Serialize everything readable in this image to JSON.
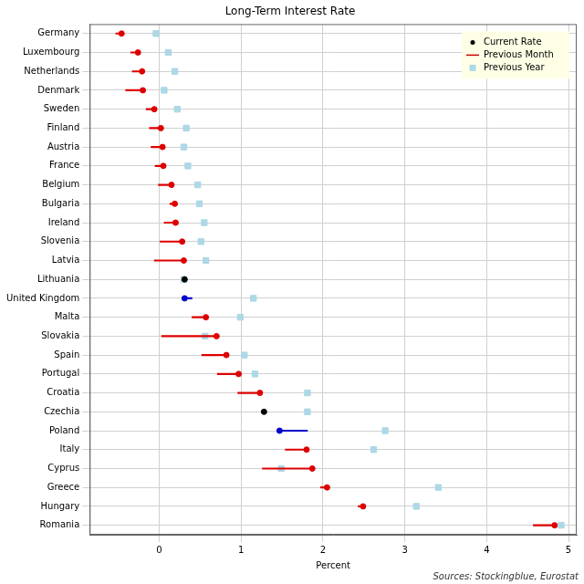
{
  "chart_data": {
    "type": "dumbbell",
    "title": "Long-Term Interest Rate",
    "x_label": "Percent",
    "source": "Sources: Stockingblue, Eurostat",
    "orientation": "horizontal",
    "categories": [
      "Germany",
      "Luxembourg",
      "Netherlands",
      "Denmark",
      "Sweden",
      "Finland",
      "Austria",
      "France",
      "Belgium",
      "Bulgaria",
      "Ireland",
      "Slovenia",
      "Latvia",
      "Lithuania",
      "United Kingdom",
      "Malta",
      "Slovakia",
      "Spain",
      "Portugal",
      "Croatia",
      "Czechia",
      "Poland",
      "Italy",
      "Cyprus",
      "Greece",
      "Hungary",
      "Romania"
    ],
    "series": [
      {
        "name": "Current Rate",
        "color": "#000000",
        "marker": "circle",
        "values": [
          -0.46,
          -0.26,
          -0.21,
          -0.2,
          -0.06,
          0.02,
          0.04,
          0.05,
          0.15,
          0.19,
          0.2,
          0.28,
          0.3,
          0.31,
          0.31,
          0.57,
          0.7,
          0.82,
          0.97,
          1.23,
          1.28,
          1.47,
          1.8,
          1.87,
          2.05,
          2.49,
          4.83
        ],
        "colors": [
          "#dd0000",
          "#dd0000",
          "#dd0000",
          "#dd0000",
          "#dd0000",
          "#dd0000",
          "#dd0000",
          "#dd0000",
          "#dd0000",
          "#dd0000",
          "#dd0000",
          "#dd0000",
          "#dd0000",
          "#000000",
          "#0000cc",
          "#dd0000",
          "#dd0000",
          "#dd0000",
          "#dd0000",
          "#dd0000",
          "#000000",
          "#0000cc",
          "#dd0000",
          "#dd0000",
          "#dd0000",
          "#dd0000",
          "#dd0000"
        ]
      },
      {
        "name": "Previous Month",
        "color": "#cc0000",
        "line_style": "solid",
        "values": [
          -0.53,
          -0.35,
          -0.33,
          -0.41,
          -0.16,
          -0.12,
          -0.1,
          -0.05,
          -0.01,
          0.13,
          0.06,
          0.01,
          -0.06,
          0.31,
          0.4,
          0.4,
          0.03,
          0.52,
          0.71,
          0.96,
          1.28,
          1.81,
          1.54,
          1.26,
          1.97,
          2.43,
          4.57
        ],
        "colors": [
          "#dd0000",
          "#dd0000",
          "#dd0000",
          "#dd0000",
          "#dd0000",
          "#dd0000",
          "#dd0000",
          "#dd0000",
          "#dd0000",
          "#dd0000",
          "#dd0000",
          "#dd0000",
          "#dd0000",
          "#000000",
          "#0000cc",
          "#dd0000",
          "#dd0000",
          "#dd0000",
          "#dd0000",
          "#dd0000",
          "#000000",
          "#0000cc",
          "#dd0000",
          "#dd0000",
          "#dd0000",
          "#dd0000",
          "#dd0000"
        ]
      },
      {
        "name": "Previous Year",
        "color": "#add8e6",
        "marker": "square",
        "values": [
          -0.04,
          0.11,
          0.19,
          0.06,
          0.22,
          0.33,
          0.3,
          0.35,
          0.47,
          0.49,
          0.55,
          0.51,
          0.57,
          0.3,
          1.15,
          0.99,
          0.56,
          1.04,
          1.17,
          1.81,
          1.81,
          2.76,
          2.62,
          1.49,
          3.41,
          3.14,
          4.91
        ]
      }
    ],
    "xlim": [
      -0.85,
      5.1
    ],
    "xticks": [
      0,
      1,
      2,
      3,
      4,
      5
    ],
    "grid": true,
    "legend": "upper right"
  }
}
